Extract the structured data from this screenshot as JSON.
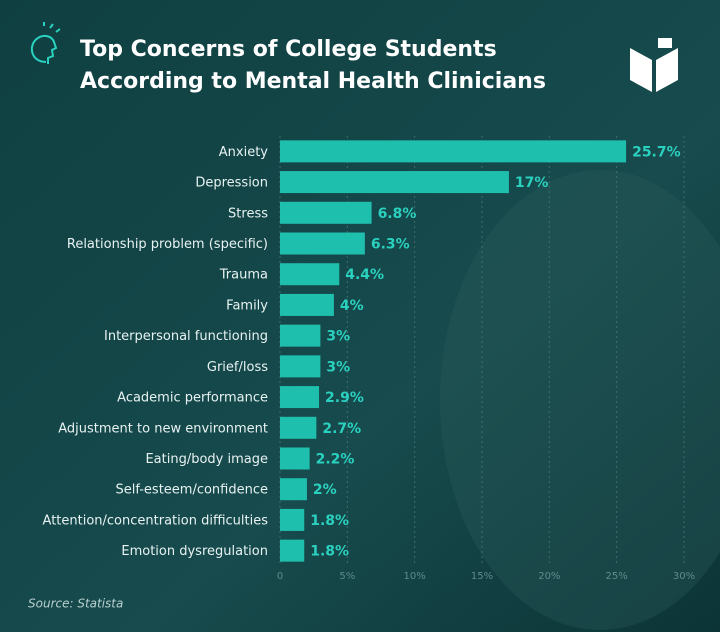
{
  "chart_data": {
    "type": "bar",
    "orientation": "horizontal",
    "title": [
      "Top Concerns of College Students",
      "According to Mental Health Clinicians"
    ],
    "categories": [
      "Anxiety",
      "Depression",
      "Stress",
      "Relationship problem (specific)",
      "Trauma",
      "Family",
      "Interpersonal functioning",
      "Grief/loss",
      "Academic performance",
      "Adjustment to new environment",
      "Eating/body image",
      "Self-esteem/confidence",
      "Attention/concentration difficulties",
      "Emotion dysregulation"
    ],
    "values": [
      25.7,
      17,
      6.8,
      6.3,
      4.4,
      4,
      3,
      3,
      2.9,
      2.7,
      2.2,
      2,
      1.8,
      1.8
    ],
    "value_labels": [
      "25.7%",
      "17%",
      "6.8%",
      "6.3%",
      "4.4%",
      "4%",
      "3%",
      "3%",
      "2.9%",
      "2.7%",
      "2.2%",
      "2%",
      "1.8%",
      "1.8%"
    ],
    "color": "#1fbfae",
    "xlim": [
      0,
      30
    ],
    "xticks": [
      0,
      {
        "value": 5,
        "label": "5%"
      },
      {
        "value": 10,
        "label": "10%"
      },
      {
        "value": 15,
        "label": "15%"
      },
      {
        "value": 20,
        "label": "20%"
      },
      {
        "value": 25,
        "label": "25%"
      },
      {
        "value": 30,
        "label": "30%"
      }
    ],
    "grid": true,
    "source": "Source: Statista"
  }
}
